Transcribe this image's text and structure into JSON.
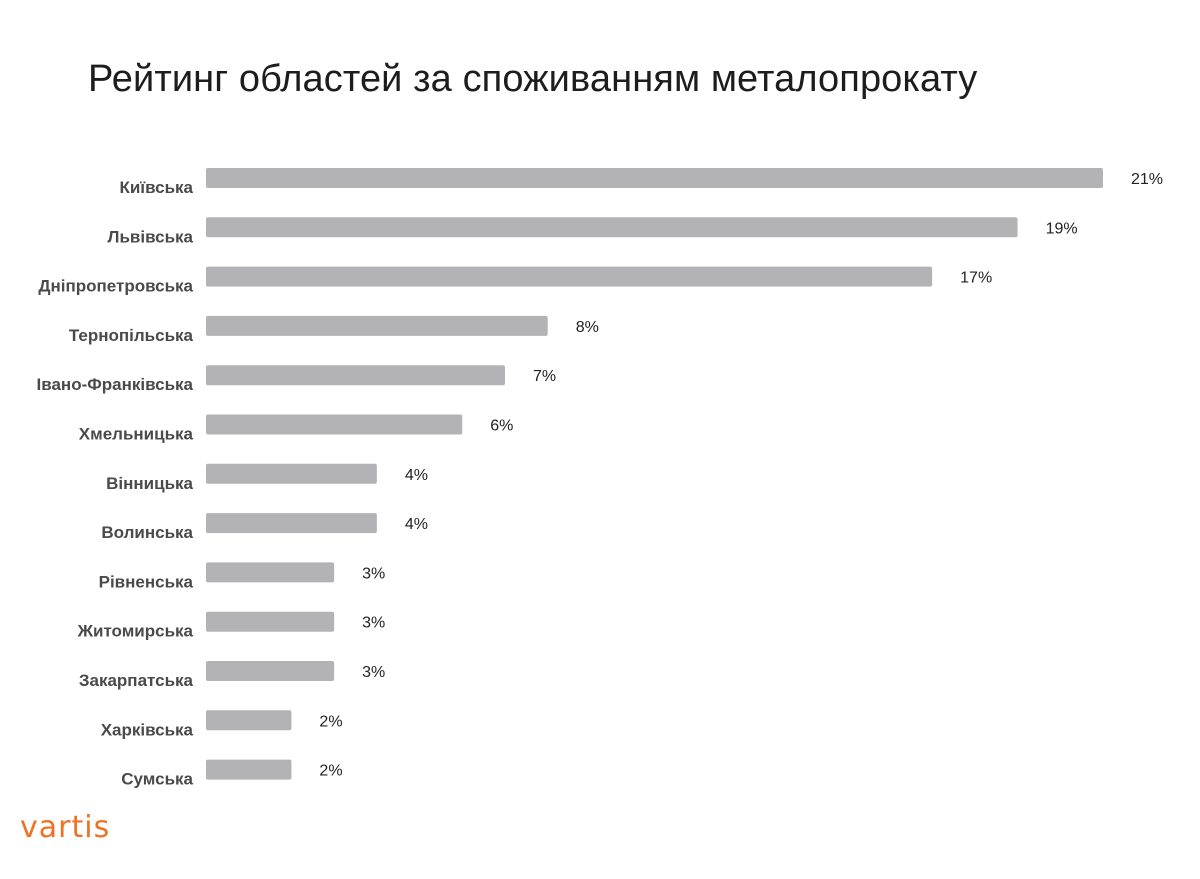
{
  "title": "Рейтинг областей за споживанням металопрокату",
  "logo": "vartis",
  "colors": {
    "bar": "#b3b3b6",
    "logo": "#ee7223",
    "title": "#1d1d1d",
    "category_label": "#4a4a4a"
  },
  "chart_data": {
    "type": "bar",
    "orientation": "horizontal",
    "title": "Рейтинг областей за споживанням металопрокату",
    "unit": "%",
    "categories": [
      "Київська",
      "Львівська",
      "Дніпропетровська",
      "Тернопільська",
      "Івано-Франківська",
      "Хмельницька",
      "Вінницька",
      "Волинська",
      "Рівненська",
      "Житомирська",
      "Закарпатська",
      "Харківська",
      "Сумська"
    ],
    "values": [
      21,
      19,
      17,
      8,
      7,
      6,
      4,
      4,
      3,
      3,
      3,
      2,
      2
    ],
    "value_labels": [
      "21%",
      "19%",
      "17%",
      "8%",
      "7%",
      "6%",
      "4%",
      "4%",
      "3%",
      "3%",
      "3%",
      "2%",
      "2%"
    ],
    "grid": false,
    "legend": "none"
  }
}
